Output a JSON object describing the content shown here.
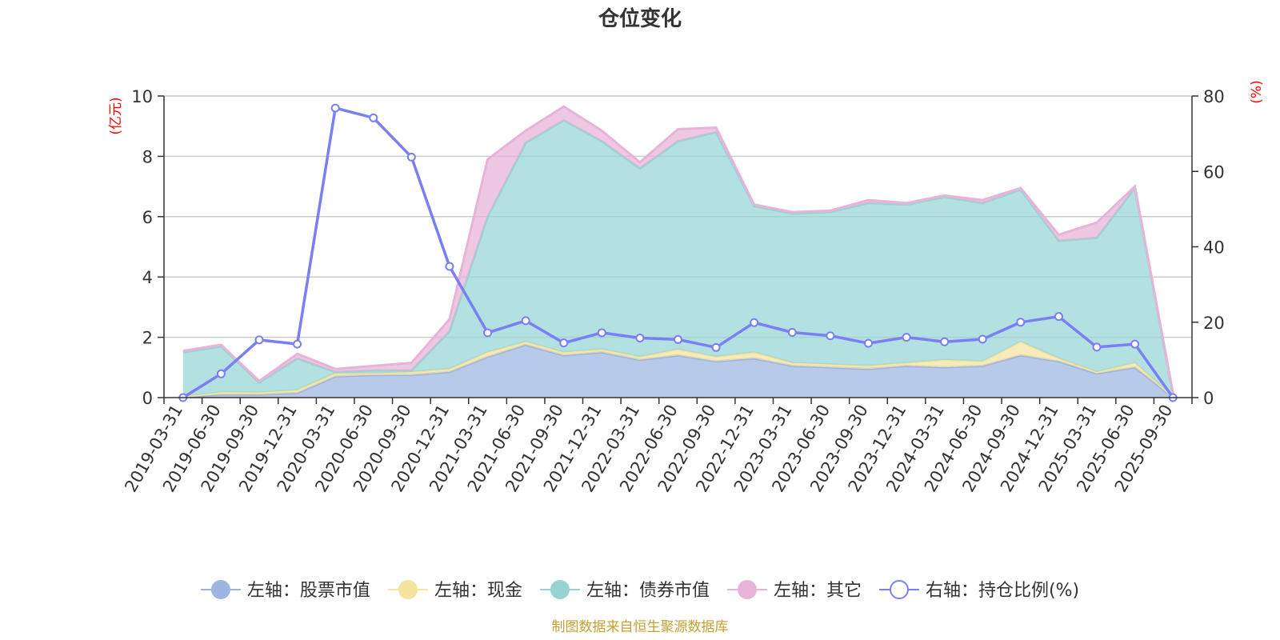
{
  "chart_data": {
    "type": "area",
    "title": "仓位变化",
    "left_unit": "(亿元)",
    "right_unit": "(%)",
    "source": "制图数据来自恒生聚源数据库",
    "x": [
      "2019-03-31",
      "2019-06-30",
      "2019-09-30",
      "2019-12-31",
      "2020-03-31",
      "2020-06-30",
      "2020-09-30",
      "2020-12-31",
      "2021-03-31",
      "2021-06-30",
      "2021-09-30",
      "2021-12-31",
      "2022-03-31",
      "2022-06-30",
      "2022-09-30",
      "2022-12-31",
      "2023-03-31",
      "2023-06-30",
      "2023-09-30",
      "2023-12-31",
      "2024-03-31",
      "2024-06-30",
      "2024-09-30",
      "2024-12-31",
      "2025-03-31",
      "2025-06-30",
      "2025-09-30"
    ],
    "y_left": {
      "min": 0,
      "max": 10,
      "ticks": [
        "0",
        "2",
        "4",
        "6",
        "8",
        "10"
      ]
    },
    "y_right": {
      "min": 0,
      "max": 80,
      "ticks": [
        "0",
        "20",
        "40",
        "60",
        "80"
      ]
    },
    "grid": true,
    "legend_position": "bottom",
    "stacked_series": [
      {
        "name": "左轴：股票市值",
        "color": "#9db5e0",
        "values": [
          0.02,
          0.1,
          0.1,
          0.15,
          0.7,
          0.75,
          0.75,
          0.85,
          1.35,
          1.75,
          1.4,
          1.5,
          1.25,
          1.4,
          1.2,
          1.3,
          1.05,
          1.0,
          0.95,
          1.05,
          1.0,
          1.05,
          1.4,
          1.2,
          0.8,
          1.0,
          0.02
        ]
      },
      {
        "name": "左轴：现金",
        "color": "#f5e3a0",
        "values": [
          0.01,
          0.08,
          0.07,
          0.1,
          0.1,
          0.05,
          0.1,
          0.1,
          0.15,
          0.1,
          0.1,
          0.1,
          0.1,
          0.2,
          0.15,
          0.2,
          0.1,
          0.1,
          0.1,
          0.1,
          0.25,
          0.15,
          0.45,
          0.1,
          0.05,
          0.15,
          0.01
        ]
      },
      {
        "name": "左轴：债券市值",
        "color": "#96d4d4",
        "values": [
          1.47,
          1.52,
          0.33,
          1.05,
          0.05,
          0.1,
          0.05,
          1.25,
          4.5,
          6.6,
          7.7,
          6.9,
          6.25,
          6.9,
          7.45,
          4.85,
          4.95,
          5.05,
          5.4,
          5.25,
          5.4,
          5.25,
          5.05,
          3.9,
          4.45,
          5.8,
          0.07
        ]
      },
      {
        "name": "左轴：其它",
        "color": "#e8b3d8",
        "values": [
          0.05,
          0.05,
          0.05,
          0.15,
          0.1,
          0.15,
          0.25,
          0.4,
          1.9,
          0.4,
          0.45,
          0.35,
          0.2,
          0.4,
          0.15,
          0.05,
          0.05,
          0.05,
          0.1,
          0.05,
          0.05,
          0.1,
          0.05,
          0.2,
          0.5,
          0.05,
          0.05
        ]
      }
    ],
    "line_series": {
      "name": "右轴：持仓比例(%)",
      "color": "#7b7ff5",
      "values": [
        0.0,
        6.3,
        15.3,
        14.2,
        76.8,
        74.2,
        63.8,
        34.8,
        17.2,
        20.4,
        14.5,
        17.2,
        15.8,
        15.4,
        13.3,
        19.9,
        17.3,
        16.4,
        14.4,
        16.0,
        14.8,
        15.5,
        20.0,
        21.5,
        13.4,
        14.2,
        0.0
      ]
    }
  }
}
